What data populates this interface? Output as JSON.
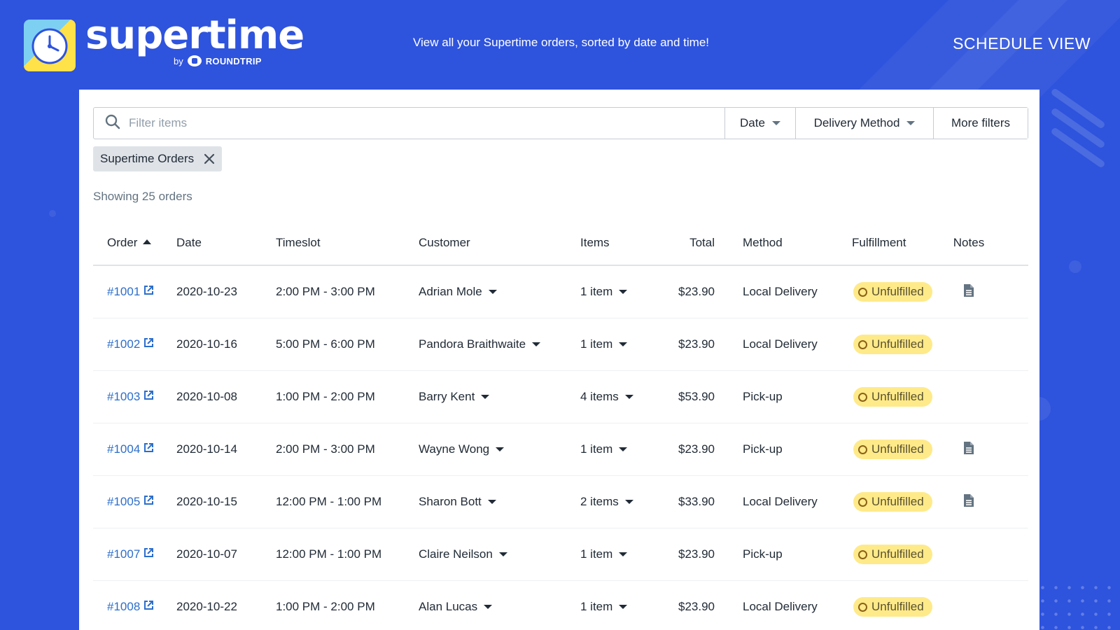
{
  "brand": {
    "name": "supertime",
    "by": "by",
    "partner": "ROUNDTRIP"
  },
  "header": {
    "tagline": "View all your Supertime orders, sorted by date and time!",
    "view_label": "SCHEDULE VIEW"
  },
  "filters": {
    "search_placeholder": "Filter items",
    "date_label": "Date",
    "method_label": "Delivery Method",
    "more_label": "More filters",
    "active_tag": "Supertime Orders"
  },
  "summary": "Showing 25 orders",
  "table": {
    "columns": {
      "order": "Order",
      "date": "Date",
      "timeslot": "Timeslot",
      "customer": "Customer",
      "items": "Items",
      "total": "Total",
      "method": "Method",
      "fulfillment": "Fulfillment",
      "notes": "Notes"
    },
    "rows": [
      {
        "order": "#1001",
        "date": "2020-10-23",
        "timeslot": "2:00 PM - 3:00 PM",
        "customer": "Adrian Mole",
        "items": "1 item",
        "total": "$23.90",
        "method": "Local Delivery",
        "fulfillment": "Unfulfilled",
        "has_note": true
      },
      {
        "order": "#1002",
        "date": "2020-10-16",
        "timeslot": "5:00 PM - 6:00 PM",
        "customer": "Pandora Braithwaite",
        "items": "1 item",
        "total": "$23.90",
        "method": "Local Delivery",
        "fulfillment": "Unfulfilled",
        "has_note": false
      },
      {
        "order": "#1003",
        "date": "2020-10-08",
        "timeslot": "1:00 PM - 2:00 PM",
        "customer": "Barry Kent",
        "items": "4 items",
        "total": "$53.90",
        "method": "Pick-up",
        "fulfillment": "Unfulfilled",
        "has_note": false
      },
      {
        "order": "#1004",
        "date": "2020-10-14",
        "timeslot": "2:00 PM - 3:00 PM",
        "customer": "Wayne Wong",
        "items": "1 item",
        "total": "$23.90",
        "method": "Pick-up",
        "fulfillment": "Unfulfilled",
        "has_note": true
      },
      {
        "order": "#1005",
        "date": "2020-10-15",
        "timeslot": "12:00 PM - 1:00 PM",
        "customer": "Sharon Bott",
        "items": "2 items",
        "total": "$33.90",
        "method": "Local Delivery",
        "fulfillment": "Unfulfilled",
        "has_note": true
      },
      {
        "order": "#1007",
        "date": "2020-10-07",
        "timeslot": "12:00 PM - 1:00 PM",
        "customer": "Claire Neilson",
        "items": "1 item",
        "total": "$23.90",
        "method": "Pick-up",
        "fulfillment": "Unfulfilled",
        "has_note": false
      },
      {
        "order": "#1008",
        "date": "2020-10-22",
        "timeslot": "1:00 PM - 2:00 PM",
        "customer": "Alan Lucas",
        "items": "1 item",
        "total": "$23.90",
        "method": "Local Delivery",
        "fulfillment": "Unfulfilled",
        "has_note": false
      }
    ]
  },
  "colors": {
    "background": "#2e53dd",
    "link": "#2c6ecb",
    "badge_bg": "#ffea8a"
  },
  "icons": {
    "logo": "clock-icon",
    "search": "search-icon",
    "external": "external-link-icon",
    "note": "note-icon",
    "close": "close-icon"
  }
}
